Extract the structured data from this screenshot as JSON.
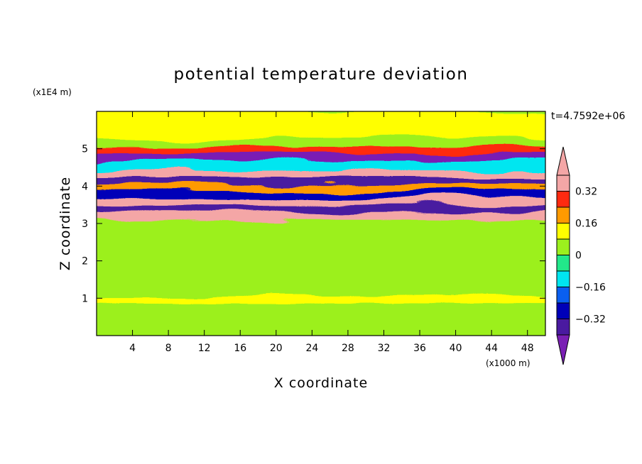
{
  "chart_data": {
    "type": "heatmap",
    "title": "potential temperature deviation",
    "xlabel": "X coordinate",
    "ylabel": "Z coordinate",
    "x_unit": "(x1000 m)",
    "y_unit": "(x1E4 m)",
    "time_label": "t=4.7592e+06",
    "xlim": [
      0,
      50
    ],
    "ylim": [
      0,
      6
    ],
    "x_ticks": [
      4,
      8,
      12,
      16,
      20,
      24,
      28,
      32,
      36,
      40,
      44,
      48
    ],
    "y_ticks": [
      1,
      2,
      3,
      4,
      5
    ],
    "colorbar": {
      "levels": [
        -0.4,
        -0.32,
        -0.24,
        -0.16,
        -0.08,
        0,
        0.08,
        0.16,
        0.24,
        0.32,
        0.4
      ],
      "labeled_levels": [
        0.32,
        0.16,
        0,
        -0.16,
        -0.32
      ],
      "labels": [
        "0.32",
        "0.16",
        "0",
        "−0.16",
        "−0.32"
      ],
      "colors": [
        "#7a1fb4",
        "#4a1aa0",
        "#0000b8",
        "#0a5ff0",
        "#00e6f0",
        "#22e88a",
        "#9cf01e",
        "#ffff00",
        "#ff9a00",
        "#ff2a10",
        "#f4a6a6"
      ],
      "extend": "both"
    },
    "bands": [
      {
        "z_min": 0.0,
        "z_max": 0.9,
        "value": 0.05
      },
      {
        "z_min": 0.9,
        "z_max": 1.1,
        "value": 0.12
      },
      {
        "z_min": 1.1,
        "z_max": 3.1,
        "value": 0.0
      },
      {
        "z_min": 3.1,
        "z_max": 3.3,
        "value": 0.38
      },
      {
        "z_min": 3.3,
        "z_max": 3.5,
        "value": -0.38
      },
      {
        "z_min": 3.5,
        "z_max": 3.7,
        "value": 0.4
      },
      {
        "z_min": 3.7,
        "z_max": 3.9,
        "value": -0.3
      },
      {
        "z_min": 3.9,
        "z_max": 4.1,
        "value": 0.2
      },
      {
        "z_min": 4.1,
        "z_max": 4.3,
        "value": -0.38
      },
      {
        "z_min": 4.3,
        "z_max": 4.5,
        "value": 0.42
      },
      {
        "z_min": 4.5,
        "z_max": 4.7,
        "value": -0.1
      },
      {
        "z_min": 4.7,
        "z_max": 4.9,
        "value": -0.42
      },
      {
        "z_min": 4.9,
        "z_max": 5.1,
        "value": 0.3
      },
      {
        "z_min": 5.1,
        "z_max": 5.3,
        "value": 0.05
      },
      {
        "z_min": 5.3,
        "z_max": 6.0,
        "value": 0.08
      }
    ]
  }
}
